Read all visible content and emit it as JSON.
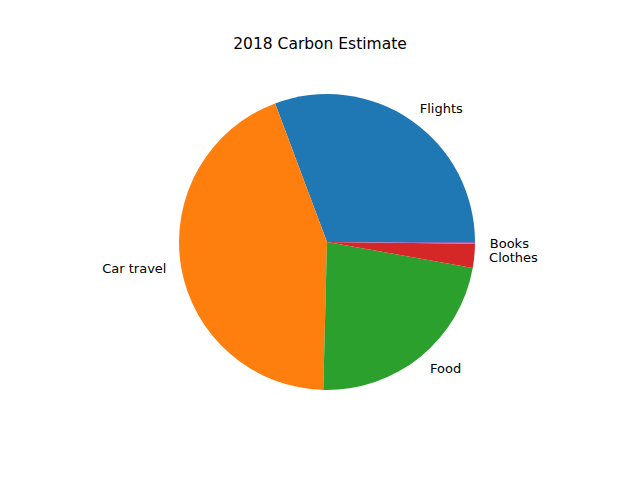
{
  "chart_data": {
    "type": "pie",
    "title": "2018 Carbon Estimate",
    "categories": [
      "Flights",
      "Car travel",
      "Food",
      "Clothes",
      "Books"
    ],
    "values": [
      30.7,
      43.9,
      22.6,
      2.6,
      0.2
    ],
    "colors": [
      "#1f77b4",
      "#ff7f0e",
      "#2ca02c",
      "#d62728",
      "#9467bd"
    ]
  }
}
